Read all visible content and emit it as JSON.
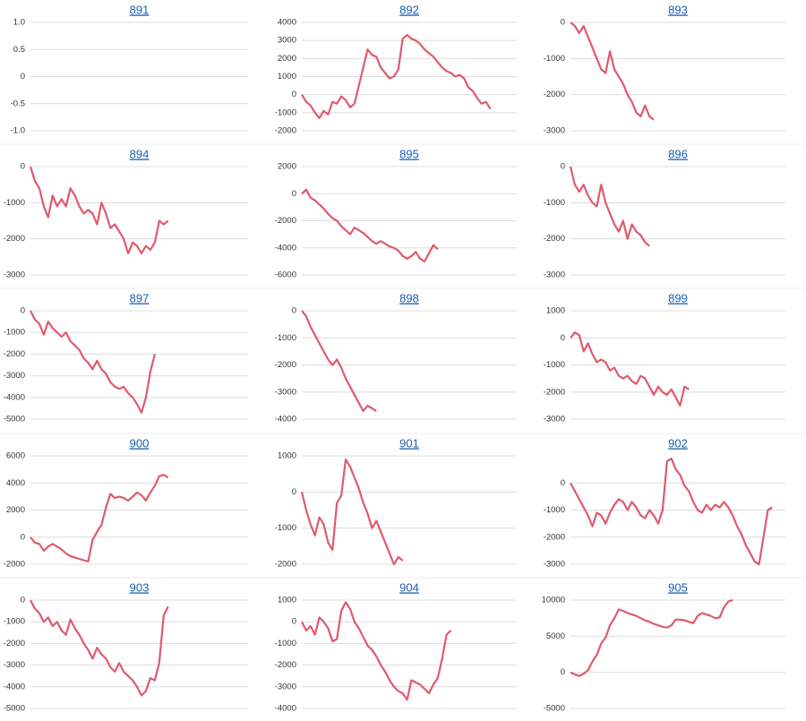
{
  "chart_data": [
    {
      "type": "line",
      "title": "891",
      "color": "#e05a6e",
      "grid": true,
      "values": [],
      "ylim": [
        -1,
        1
      ],
      "yticks": [
        {
          "value": 1,
          "label": "1.0"
        },
        0.5,
        0,
        -0.5,
        {
          "value": -1,
          "label": "-1.0"
        }
      ]
    },
    {
      "type": "line",
      "title": "892",
      "color": "#e05a6e",
      "grid": true,
      "values": [
        0,
        -400,
        -600,
        -1000,
        -1300,
        -900,
        -1100,
        -400,
        -500,
        -100,
        -300,
        -700,
        -500,
        500,
        1500,
        2500,
        2200,
        2100,
        1500,
        1200,
        900,
        1000,
        1400,
        3100,
        3300,
        3100,
        3000,
        2800,
        2500,
        2300,
        2100,
        1800,
        1500,
        1300,
        1200,
        1000,
        1100,
        900,
        400,
        200,
        -200,
        -500,
        -400,
        -800
      ],
      "ylim": [
        -2000,
        4000
      ],
      "yticks": [
        4000,
        3000,
        2000,
        1000,
        0,
        -1000,
        -2000
      ]
    },
    {
      "type": "line",
      "title": "893",
      "color": "#e05a6e",
      "grid": true,
      "values": [
        0,
        -100,
        -300,
        -100,
        -400,
        -700,
        -1000,
        -1300,
        -1400,
        -800,
        -1300,
        -1500,
        -1700,
        -2000,
        -2200,
        -2500,
        -2600,
        -2300,
        -2600,
        -2700
      ],
      "ylim": [
        -3000,
        0
      ],
      "yticks": [
        0,
        -1000,
        -2000,
        -3000
      ]
    },
    {
      "type": "line",
      "title": "894",
      "color": "#e05a6e",
      "grid": true,
      "values": [
        0,
        -400,
        -600,
        -1100,
        -1400,
        -800,
        -1100,
        -900,
        -1100,
        -600,
        -800,
        -1100,
        -1300,
        -1200,
        -1300,
        -1600,
        -1000,
        -1300,
        -1700,
        -1600,
        -1800,
        -2000,
        -2400,
        -2100,
        -2200,
        -2400,
        -2200,
        -2300,
        -2100,
        -1500,
        -1600,
        -1500
      ],
      "ylim": [
        -3000,
        0
      ],
      "yticks": [
        0,
        -1000,
        -2000,
        -3000
      ]
    },
    {
      "type": "line",
      "title": "895",
      "color": "#e05a6e",
      "grid": true,
      "values": [
        0,
        300,
        -300,
        -500,
        -800,
        -1100,
        -1500,
        -1800,
        -2000,
        -2400,
        -2700,
        -3000,
        -2500,
        -2700,
        -2900,
        -3200,
        -3500,
        -3700,
        -3500,
        -3700,
        -3900,
        -4000,
        -4200,
        -4600,
        -4800,
        -4600,
        -4300,
        -4800,
        -5000,
        -4400,
        -3800,
        -4100
      ],
      "ylim": [
        -6000,
        2000
      ],
      "yticks": [
        2000,
        0,
        -2000,
        -4000,
        -6000
      ]
    },
    {
      "type": "line",
      "title": "896",
      "color": "#e05a6e",
      "grid": true,
      "values": [
        0,
        -500,
        -700,
        -500,
        -800,
        -1000,
        -1100,
        -500,
        -1000,
        -1300,
        -1600,
        -1800,
        -1500,
        -2000,
        -1600,
        -1800,
        -1900,
        -2100,
        -2200
      ],
      "ylim": [
        -3000,
        0
      ],
      "yticks": [
        0,
        -1000,
        -2000,
        -3000
      ]
    },
    {
      "type": "line",
      "title": "897",
      "color": "#e05a6e",
      "grid": true,
      "values": [
        0,
        -400,
        -600,
        -1100,
        -500,
        -800,
        -1000,
        -1200,
        -1000,
        -1400,
        -1600,
        -1800,
        -2200,
        -2400,
        -2700,
        -2300,
        -2700,
        -2900,
        -3300,
        -3500,
        -3600,
        -3500,
        -3800,
        -4000,
        -4300,
        -4700,
        -4000,
        -2800,
        -2000
      ],
      "ylim": [
        -5000,
        0
      ],
      "yticks": [
        0,
        -1000,
        -2000,
        -3000,
        -4000,
        -5000
      ]
    },
    {
      "type": "line",
      "title": "898",
      "color": "#e05a6e",
      "grid": true,
      "values": [
        0,
        -200,
        -600,
        -900,
        -1200,
        -1500,
        -1800,
        -2000,
        -1800,
        -2100,
        -2500,
        -2800,
        -3100,
        -3400,
        -3700,
        -3500,
        -3600,
        -3700
      ],
      "ylim": [
        -4000,
        0
      ],
      "yticks": [
        0,
        -1000,
        -2000,
        -3000,
        -4000
      ]
    },
    {
      "type": "line",
      "title": "899",
      "color": "#e05a6e",
      "grid": true,
      "values": [
        0,
        200,
        100,
        -500,
        -200,
        -600,
        -900,
        -800,
        -900,
        -1200,
        -1100,
        -1400,
        -1500,
        -1400,
        -1600,
        -1700,
        -1400,
        -1500,
        -1800,
        -2100,
        -1800,
        -2000,
        -2100,
        -1900,
        -2200,
        -2500,
        -1800,
        -1900
      ],
      "ylim": [
        -3000,
        1000
      ],
      "yticks": [
        1000,
        0,
        -1000,
        -2000,
        -3000
      ]
    },
    {
      "type": "line",
      "title": "900",
      "color": "#e05a6e",
      "grid": true,
      "values": [
        0,
        -400,
        -500,
        -1000,
        -700,
        -500,
        -700,
        -900,
        -1200,
        -1400,
        -1500,
        -1600,
        -1700,
        -1800,
        -200,
        400,
        900,
        2200,
        3200,
        2900,
        3000,
        2900,
        2700,
        3000,
        3300,
        3100,
        2700,
        3300,
        3800,
        4500,
        4600,
        4400
      ],
      "ylim": [
        -2000,
        6000
      ],
      "yticks": [
        6000,
        4000,
        2000,
        0,
        -2000
      ]
    },
    {
      "type": "line",
      "title": "901",
      "color": "#e05a6e",
      "grid": true,
      "values": [
        0,
        -500,
        -900,
        -1200,
        -700,
        -900,
        -1400,
        -1600,
        -300,
        -100,
        900,
        700,
        400,
        100,
        -300,
        -600,
        -1000,
        -800,
        -1100,
        -1400,
        -1700,
        -2000,
        -1800,
        -1900
      ],
      "ylim": [
        -2000,
        1000
      ],
      "yticks": [
        1000,
        0,
        -1000,
        -2000
      ]
    },
    {
      "type": "line",
      "title": "902",
      "color": "#e05a6e",
      "grid": true,
      "values": [
        0,
        -300,
        -600,
        -900,
        -1200,
        -1600,
        -1100,
        -1200,
        -1500,
        -1100,
        -800,
        -600,
        -700,
        -1000,
        -700,
        -900,
        -1200,
        -1300,
        -1000,
        -1200,
        -1500,
        -1000,
        800,
        900,
        500,
        300,
        -100,
        -300,
        -700,
        -1000,
        -1100,
        -800,
        -1000,
        -800,
        -900,
        -700,
        -900,
        -1200,
        -1600,
        -1900,
        -2300,
        -2600,
        -2900,
        -3000,
        -2000,
        -1000,
        -900
      ],
      "ylim": [
        -3000,
        1000
      ],
      "yticks": [
        0,
        -1000,
        -2000,
        -3000
      ]
    },
    {
      "type": "line",
      "title": "903",
      "color": "#e05a6e",
      "grid": true,
      "values": [
        0,
        -400,
        -600,
        -1000,
        -800,
        -1200,
        -1000,
        -1400,
        -1600,
        -900,
        -1300,
        -1600,
        -2000,
        -2300,
        -2700,
        -2200,
        -2500,
        -2700,
        -3100,
        -3300,
        -2900,
        -3300,
        -3500,
        -3700,
        -4000,
        -4400,
        -4200,
        -3600,
        -3700,
        -2900,
        -700,
        -300
      ],
      "ylim": [
        -5000,
        0
      ],
      "yticks": [
        0,
        -1000,
        -2000,
        -3000,
        -4000,
        -5000
      ]
    },
    {
      "type": "line",
      "title": "904",
      "color": "#e05a6e",
      "grid": true,
      "values": [
        0,
        -400,
        -200,
        -600,
        200,
        0,
        -300,
        -900,
        -800,
        500,
        900,
        600,
        0,
        -300,
        -700,
        -1100,
        -1300,
        -1600,
        -2000,
        -2300,
        -2700,
        -3000,
        -3200,
        -3300,
        -3600,
        -2700,
        -2800,
        -2900,
        -3100,
        -3300,
        -2900,
        -2600,
        -1700,
        -600,
        -400
      ],
      "ylim": [
        -4000,
        1000
      ],
      "yticks": [
        1000,
        0,
        -1000,
        -2000,
        -3000,
        -4000
      ]
    },
    {
      "type": "line",
      "title": "905",
      "color": "#e05a6e",
      "grid": true,
      "values": [
        0,
        -300,
        -500,
        -200,
        300,
        1500,
        2400,
        4000,
        4800,
        6500,
        7500,
        8700,
        8500,
        8200,
        8000,
        7800,
        7500,
        7200,
        7000,
        6700,
        6500,
        6300,
        6200,
        6500,
        7300,
        7300,
        7200,
        7000,
        6800,
        7800,
        8200,
        8000,
        7800,
        7500,
        7600,
        9000,
        9800,
        10000
      ],
      "ylim": [
        -5000,
        10000
      ],
      "yticks": [
        10000,
        5000,
        0,
        -5000
      ]
    }
  ]
}
